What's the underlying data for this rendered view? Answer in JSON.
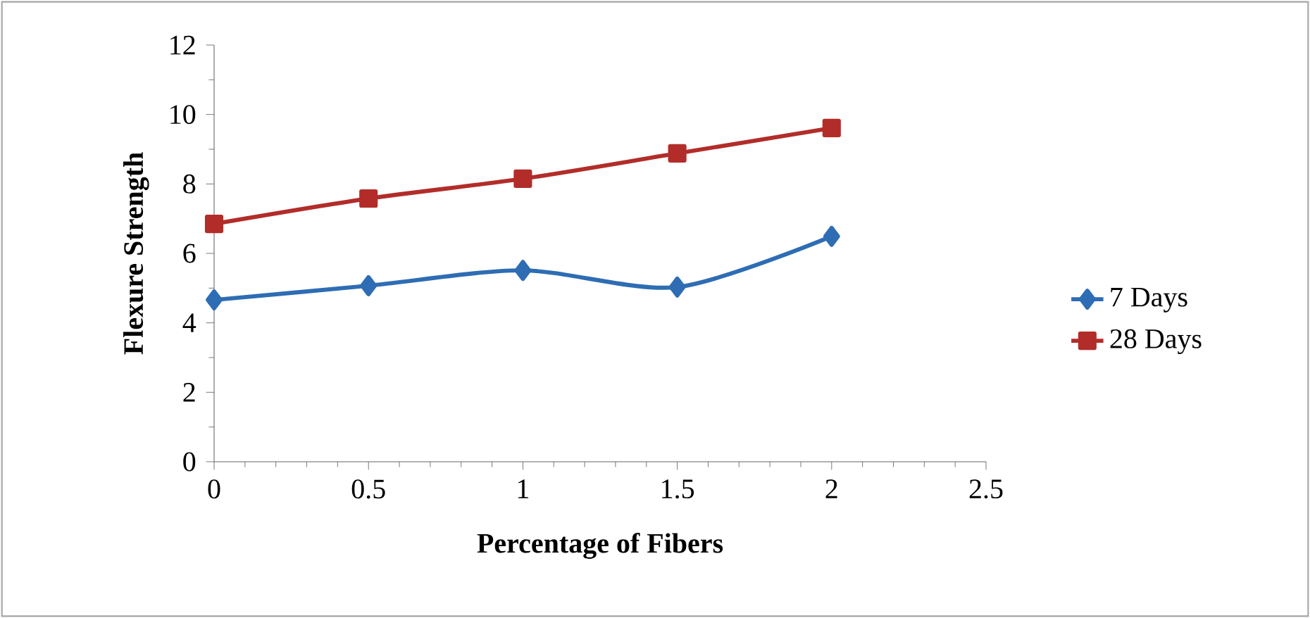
{
  "chart_data": {
    "type": "line",
    "xlabel": "Percentage of Fibers",
    "ylabel": "Flexure Strength",
    "x": [
      0,
      0.5,
      1,
      1.5,
      2
    ],
    "series": [
      {
        "name": "7 Days",
        "color": "#2e6db4",
        "marker": "diamond",
        "values": [
          4.66,
          5.07,
          5.51,
          5.03,
          6.49
        ]
      },
      {
        "name": "28 Days",
        "color": "#b22d2a",
        "marker": "square",
        "values": [
          6.85,
          7.58,
          8.15,
          8.88,
          9.61
        ]
      }
    ],
    "xlim": [
      0,
      2.5
    ],
    "xticks": [
      0,
      0.5,
      1,
      1.5,
      2,
      2.5
    ],
    "ylim": [
      0,
      12
    ],
    "yticks": [
      0,
      2,
      4,
      6,
      8,
      10,
      12
    ],
    "grid": false,
    "legend": "right",
    "line_style": "solid"
  }
}
